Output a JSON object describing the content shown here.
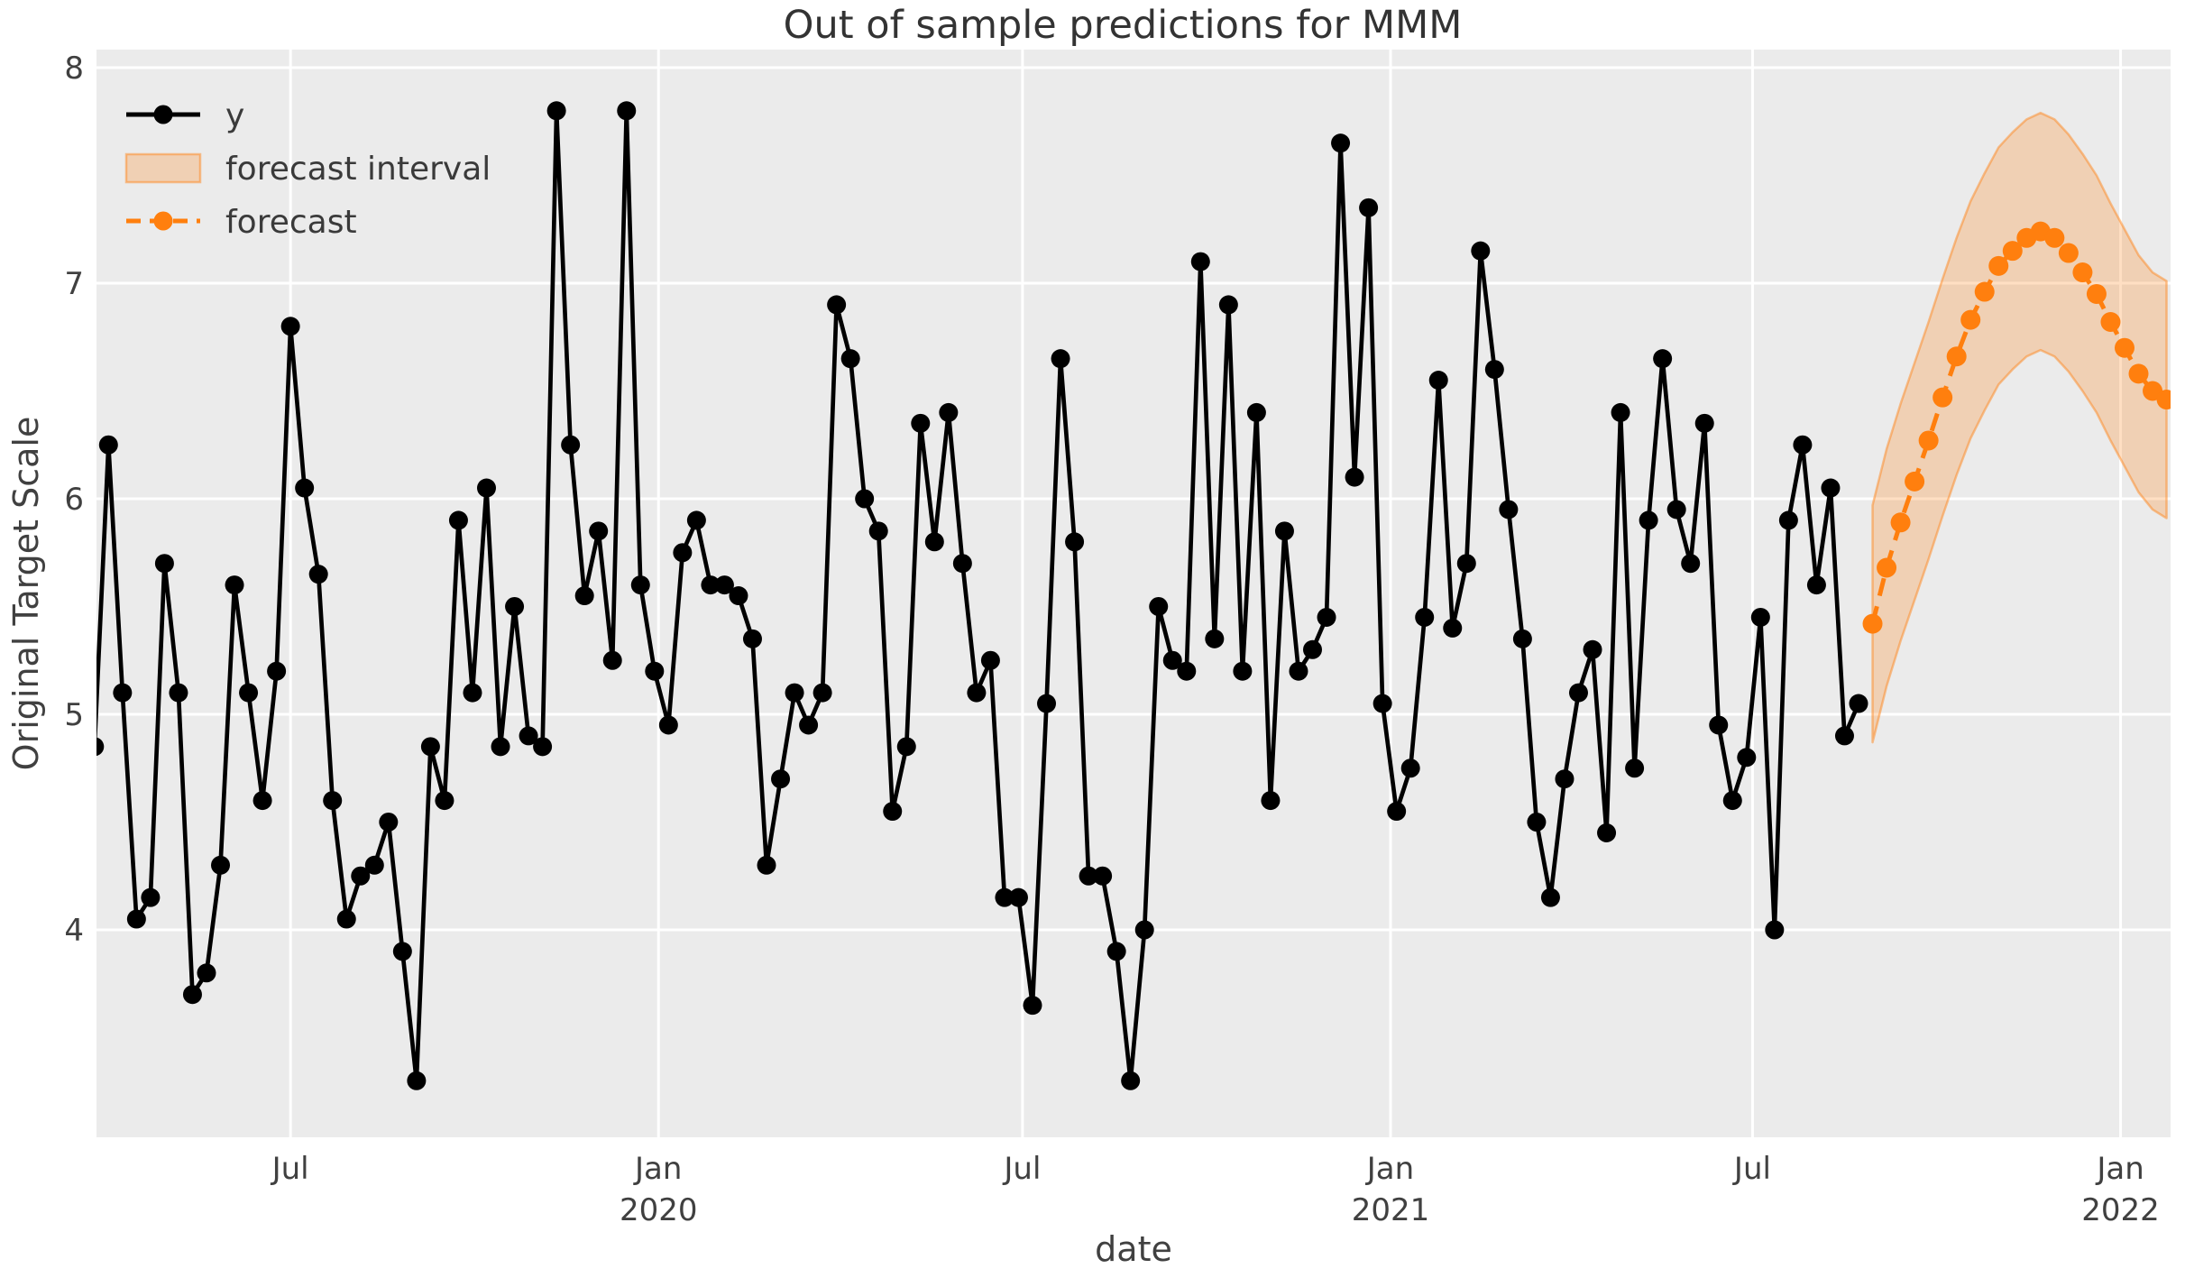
{
  "chart_data": {
    "type": "line",
    "title": "Out of sample predictions for MMM",
    "xlabel": "date",
    "ylabel": "Original Target Scale",
    "legend": [
      {
        "label": "y"
      },
      {
        "label": "forecast interval"
      },
      {
        "label": "forecast"
      }
    ],
    "legend_position": "upper left",
    "grid": true,
    "colors": {
      "axes_background": "#ebebeb",
      "gridline": "#ffffff",
      "y_series": "#000000",
      "forecast": "#ff7f0e",
      "interval_fill": "rgba(255,127,14,0.25)",
      "interval_edge": "rgba(255,127,14,0.45)"
    },
    "ylim": [
      3.04,
      8.08
    ],
    "y_ticks": [
      8,
      7,
      6,
      5,
      4
    ],
    "x_range": {
      "start": "2019-03-26",
      "end": "2022-01-26"
    },
    "x_ticks": [
      {
        "date": "2019-07-01",
        "label": "Jul",
        "year": ""
      },
      {
        "date": "2020-01-01",
        "label": "Jan",
        "year": "2020"
      },
      {
        "date": "2020-07-01",
        "label": "Jul",
        "year": ""
      },
      {
        "date": "2021-01-01",
        "label": "Jan",
        "year": "2021"
      },
      {
        "date": "2021-07-01",
        "label": "Jul",
        "year": ""
      },
      {
        "date": "2022-01-01",
        "label": "Jan",
        "year": "2022"
      }
    ],
    "series": {
      "y": {
        "name": "y",
        "start_date": "2019-03-25",
        "freq_days": 7,
        "values": [
          4.85,
          6.25,
          5.1,
          4.05,
          4.15,
          5.7,
          5.1,
          3.7,
          3.8,
          4.3,
          5.6,
          5.1,
          4.6,
          5.2,
          6.8,
          6.05,
          5.65,
          4.6,
          4.05,
          4.25,
          4.3,
          4.5,
          3.9,
          3.3,
          4.85,
          4.6,
          5.9,
          5.1,
          6.05,
          4.85,
          5.5,
          4.9,
          4.85,
          7.8,
          6.25,
          5.55,
          5.85,
          5.25,
          7.8,
          5.6,
          5.2,
          4.95,
          5.75,
          5.9,
          5.6,
          5.6,
          5.55,
          5.35,
          4.3,
          4.7,
          5.1,
          4.95,
          5.1,
          6.9,
          6.65,
          6.0,
          5.85,
          4.55,
          4.85,
          6.35,
          5.8,
          6.4,
          5.7,
          5.1,
          5.25,
          4.15,
          4.15,
          3.65,
          5.05,
          6.65,
          5.8,
          4.25,
          4.25,
          3.9,
          3.3,
          4.0,
          5.5,
          5.25,
          5.2,
          7.1,
          5.35,
          6.9,
          5.2,
          6.4,
          4.6,
          5.85,
          5.2,
          5.3,
          5.45,
          7.65,
          6.1,
          7.35,
          5.05,
          4.55,
          4.75,
          5.45,
          6.55,
          5.4,
          5.7,
          7.15,
          6.6,
          5.95,
          5.35,
          4.5,
          4.15,
          4.7,
          5.1,
          5.3,
          4.45,
          6.4,
          4.75,
          5.9,
          6.65,
          5.95,
          5.7,
          6.35,
          4.95,
          4.6,
          4.8,
          5.45,
          4.0,
          5.9,
          6.25,
          5.6,
          6.05,
          4.9,
          5.05
        ]
      },
      "forecast": {
        "name": "forecast",
        "start_date": "2021-08-30",
        "freq_days": 7,
        "values": [
          5.42,
          5.68,
          5.89,
          6.08,
          6.27,
          6.47,
          6.66,
          6.83,
          6.96,
          7.08,
          7.15,
          7.21,
          7.24,
          7.21,
          7.14,
          7.05,
          6.95,
          6.82,
          6.7,
          6.58,
          6.5,
          6.46
        ]
      },
      "forecast_interval": {
        "name": "forecast interval",
        "half_width": 0.55,
        "lower": [
          4.87,
          5.13,
          5.34,
          5.53,
          5.72,
          5.92,
          6.11,
          6.28,
          6.41,
          6.53,
          6.6,
          6.66,
          6.69,
          6.66,
          6.59,
          6.5,
          6.4,
          6.27,
          6.15,
          6.03,
          5.95,
          5.91
        ],
        "upper": [
          5.97,
          6.23,
          6.44,
          6.63,
          6.82,
          7.02,
          7.21,
          7.38,
          7.51,
          7.63,
          7.7,
          7.76,
          7.79,
          7.76,
          7.69,
          7.6,
          7.5,
          7.37,
          7.25,
          7.13,
          7.05,
          7.01
        ]
      }
    }
  }
}
